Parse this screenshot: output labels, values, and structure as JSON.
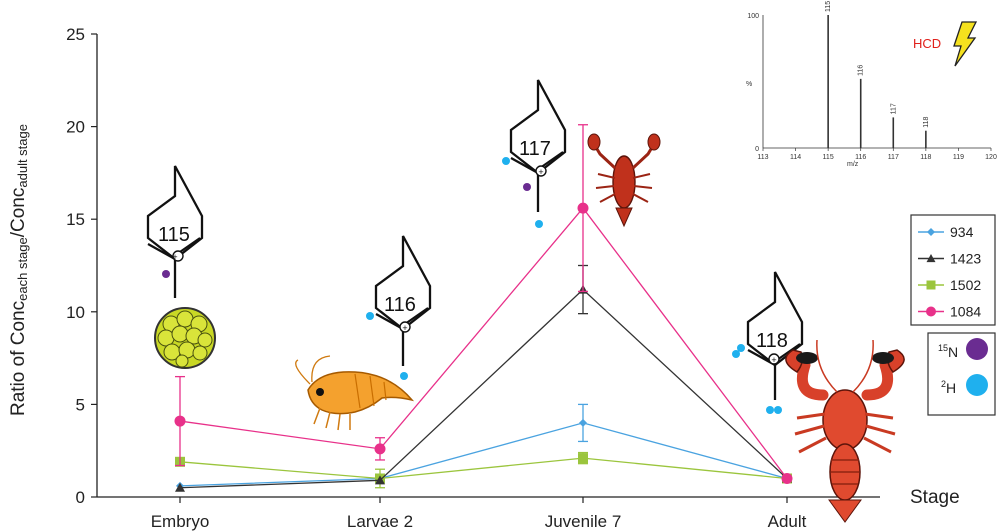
{
  "chart_data": {
    "type": "line",
    "title": "",
    "xlabel": "Stage",
    "ylabel": "Ratio of Conc each stage/Conc adult stage",
    "ylabel_main": "Ratio of Conc",
    "ylabel_sub1": "each stage",
    "ylabel_mid": "/Conc",
    "ylabel_sub2": "adult stage",
    "ylim": [
      0,
      25
    ],
    "yticks": [
      "0",
      "5",
      "10",
      "15",
      "20",
      "25"
    ],
    "categories": [
      "Embryo",
      "Larvae 2",
      "Juvenile 7",
      "Adult"
    ],
    "grid": false,
    "legend_position": "right",
    "series": [
      {
        "name": "934",
        "color": "#4aa3e0",
        "marker": "diamond",
        "values": [
          0.6,
          1.0,
          4.0,
          1.0
        ],
        "err": [
          0,
          0,
          1.0,
          0
        ]
      },
      {
        "name": "1423",
        "color": "#333333",
        "marker": "triangle",
        "values": [
          0.5,
          0.9,
          11.2,
          1.0
        ],
        "err": [
          0,
          0,
          1.3,
          0
        ]
      },
      {
        "name": "1502",
        "color": "#9bc53d",
        "marker": "square",
        "values": [
          1.9,
          1.0,
          2.1,
          1.0
        ],
        "err": [
          0,
          0.5,
          0.3,
          0
        ]
      },
      {
        "name": "1084",
        "color": "#e8318a",
        "marker": "circle",
        "values": [
          4.1,
          2.6,
          15.6,
          1.0
        ],
        "err": [
          2.4,
          0.6,
          4.5,
          0
        ]
      }
    ]
  },
  "molecules": [
    {
      "label": "115",
      "isotopes": "15N"
    },
    {
      "label": "116",
      "isotopes": "2H"
    },
    {
      "label": "117",
      "isotopes": "15N, 2H"
    },
    {
      "label": "118",
      "isotopes": "2H, 2H, 2H"
    }
  ],
  "isotope_legend": [
    {
      "label_sup": "15",
      "label_base": "N",
      "color": "#6a2c91"
    },
    {
      "label_sup": "2",
      "label_base": "H",
      "color": "#1fb0ee"
    }
  ],
  "inset": {
    "hcd_label": "HCD",
    "xlabel": "m/z",
    "ylabel": "%",
    "xticks": [
      "113",
      "114",
      "115",
      "116",
      "117",
      "118",
      "119",
      "120"
    ],
    "yticks": [
      "0",
      "100"
    ],
    "peaks": [
      {
        "mz": 115,
        "label": "115",
        "intensity": 100
      },
      {
        "mz": 116,
        "label": "116",
        "intensity": 52
      },
      {
        "mz": 117,
        "label": "117",
        "intensity": 23
      },
      {
        "mz": 118,
        "label": "118",
        "intensity": 13
      }
    ]
  },
  "colors": {
    "n15": "#6a2c91",
    "h2": "#1fb0ee",
    "hcd": "#e0201b"
  }
}
